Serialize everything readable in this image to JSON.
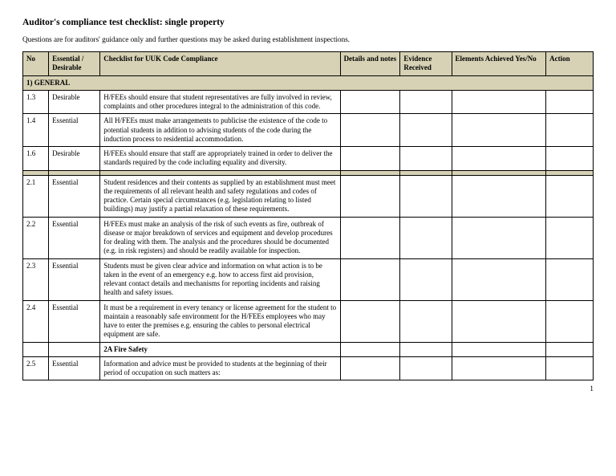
{
  "title": "Auditor's compliance test checklist: single property",
  "subtitle": "Questions are for auditors' guidance only and further questions may be asked during establishment inspections.",
  "headers": {
    "no": "No",
    "ed": "Essential / Desirable",
    "checklist": "Checklist for UUK Code Compliance",
    "details": "Details and notes",
    "evidence": "Evidence Received",
    "elements": "Elements Achieved Yes/No",
    "action": "Action"
  },
  "section_general": "1) GENERAL",
  "rows": {
    "r1": {
      "no": "1.3",
      "ed": "Desirable",
      "text": "H/FEEs should ensure that student representatives are fully involved in review, complaints and other procedures integral to the administration of this code."
    },
    "r2": {
      "no": "1.4",
      "ed": "Essential",
      "text": "All H/FEEs must make arrangements to publicise the existence of the code to potential students in addition to advising students of the code during the induction process to residential accommodation."
    },
    "r3": {
      "no": "1.6",
      "ed": "Desirable",
      "text": "H/FEEs should ensure that staff are appropriately trained in order to deliver the standards required by the code including equality and diversity."
    },
    "r4": {
      "no": "2.1",
      "ed": "Essential",
      "text": "Student residences and their contents as supplied by an establishment must meet the requirements of all relevant health and safety regulations and codes of practice. Certain special circumstances (e.g. legislation relating to listed buildings) may justify a partial relaxation of these requirements."
    },
    "r5": {
      "no": "2.2",
      "ed": "Essential",
      "text": "H/FEEs must make an analysis of the risk of such events as fire, outbreak of disease or major breakdown of services and equipment and develop procedures for dealing with them. The analysis and the procedures should be documented (e.g. in risk registers) and should be readily available for inspection."
    },
    "r6": {
      "no": "2.3",
      "ed": "Essential",
      "text": "Students must be given clear advice and information on what action is to be taken in the event of an emergency e.g. how to access first aid provision, relevant contact details and mechanisms for reporting incidents and raising health and safety issues."
    },
    "r7": {
      "no": "2.4",
      "ed": "Essential",
      "text": "It must be a requirement in every tenancy or license agreement for the student to maintain a reasonably safe environment for the H/FEEs employees who may have to enter the premises e.g. ensuring the cables to personal electrical equipment are safe."
    },
    "r8": {
      "no": "2.5",
      "ed": "Essential",
      "text": "Information and advice must be provided to students at the beginning of their period of occupation on such matters as:"
    }
  },
  "subhead_2a": "2A Fire Safety",
  "pagenum": "1"
}
